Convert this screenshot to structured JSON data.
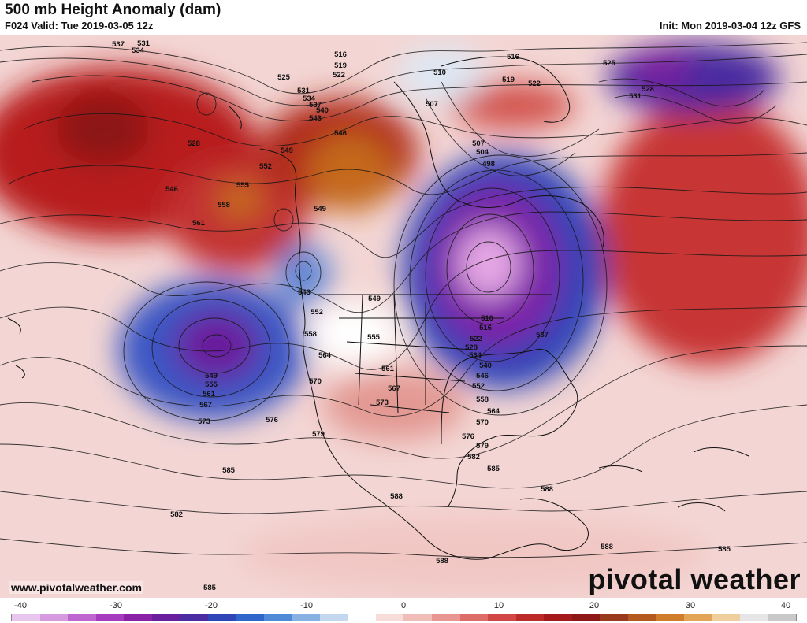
{
  "header": {
    "title": "500 mb Height Anomaly (dam)",
    "valid": "F024 Valid: Tue 2019-03-05 12z",
    "init": "Init: Mon 2019-03-04 12z GFS"
  },
  "footer": {
    "site": "www.pivotalweather.com",
    "logo": "pivotal weather"
  },
  "colorbar": {
    "labels": [
      "-40",
      "-30",
      "-20",
      "-10",
      "0",
      "10",
      "20",
      "30",
      "40"
    ],
    "colors": [
      "#e9c6ee",
      "#d69ae0",
      "#bf65cf",
      "#a63bbd",
      "#8a22a8",
      "#6a1f9e",
      "#4b2ca3",
      "#2f45b8",
      "#2e66cc",
      "#4f8ad8",
      "#87b1e3",
      "#c3d7ee",
      "#ffffff",
      "#f7dcda",
      "#f0bdb9",
      "#e99692",
      "#de6c68",
      "#d14745",
      "#bd2a2a",
      "#a51b1b",
      "#8e1717",
      "#9a3a1f",
      "#b45a1f",
      "#cf7d2a",
      "#e2a557",
      "#efcf9d",
      "#e6e6e6",
      "#c9c9c9"
    ]
  },
  "contour_labels": [
    "537",
    "534",
    "531",
    "525",
    "516",
    "519",
    "522",
    "528",
    "531",
    "534",
    "537",
    "540",
    "543",
    "546",
    "549",
    "552",
    "555",
    "558",
    "561",
    "546",
    "543",
    "549",
    "510",
    "507",
    "507",
    "504",
    "498",
    "516",
    "519",
    "522",
    "525",
    "528",
    "531",
    "510",
    "516",
    "522",
    "528",
    "534",
    "540",
    "546",
    "552",
    "558",
    "564",
    "570",
    "549",
    "552",
    "558",
    "555",
    "561",
    "564",
    "567",
    "570",
    "573",
    "576",
    "579",
    "549",
    "555",
    "561",
    "567",
    "573",
    "576",
    "579",
    "582",
    "585",
    "588",
    "588",
    "588",
    "585",
    "582",
    "585",
    "588",
    "585",
    "537"
  ]
}
